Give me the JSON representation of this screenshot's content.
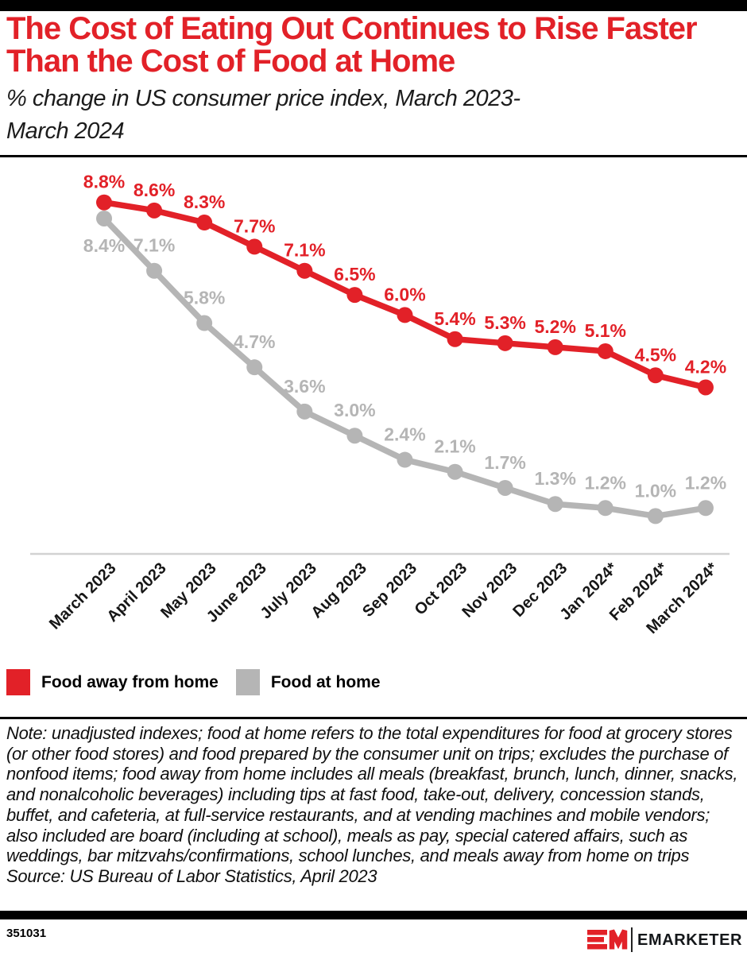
{
  "header": {
    "title_lines": [
      "The Cost of Eating Out Continues to Rise Faster",
      "Than the Cost of Food at Home"
    ],
    "subtitle_lines": [
      "% change in US consumer price index, March 2023-",
      "March 2024"
    ]
  },
  "colors": {
    "accent_red": "#e22128",
    "series_gray": "#b5b5b5",
    "axis_line": "#d2d2d2"
  },
  "chart_data": {
    "type": "line",
    "categories": [
      "March 2023",
      "April 2023",
      "May 2023",
      "June 2023",
      "July 2023",
      "Aug 2023",
      "Sep 2023",
      "Oct 2023",
      "Nov 2023",
      "Dec 2023",
      "Jan 2024*",
      "Feb 2024*",
      "March 2024*"
    ],
    "series": [
      {
        "name": "Food away from home",
        "color": "#e22128",
        "values": [
          8.8,
          8.6,
          8.3,
          7.7,
          7.1,
          6.5,
          6.0,
          5.4,
          5.3,
          5.2,
          5.1,
          4.5,
          4.2
        ]
      },
      {
        "name": "Food at home",
        "color": "#b5b5b5",
        "values": [
          8.4,
          7.1,
          5.8,
          4.7,
          3.6,
          3.0,
          2.4,
          2.1,
          1.7,
          1.3,
          1.2,
          1.0,
          1.2
        ]
      }
    ],
    "value_label_format": "{value}%",
    "data_labels": true,
    "ylim": [
      0,
      9.9
    ],
    "grid": false,
    "x_axis_line": true,
    "legend_position": "bottom"
  },
  "legend": {
    "items": [
      {
        "label": "Food away from home",
        "color": "#e22128"
      },
      {
        "label": "Food at home",
        "color": "#b5b5b5"
      }
    ]
  },
  "notes": {
    "note_text": "Note: unadjusted indexes; food at home refers to the total expenditures for food at grocery stores (or other food stores) and food prepared by the consumer unit on trips; excludes the purchase of nonfood items; food away from home includes all meals (breakfast, brunch, lunch, dinner, snacks, and nonalcoholic beverages) including tips at fast food, take-out, delivery, concession stands, buffet, and cafeteria, at full-service restaurants, and at vending machines and mobile vendors; also included are board (including at school), meals as pay, special catered affairs, such as weddings, bar mitzvahs/confirmations, school lunches, and meals away from home on trips",
    "source_text": "Source: US Bureau of Labor Statistics, April 2023"
  },
  "footer": {
    "chart_id": "351031",
    "brand_name": "EMARKETER"
  }
}
